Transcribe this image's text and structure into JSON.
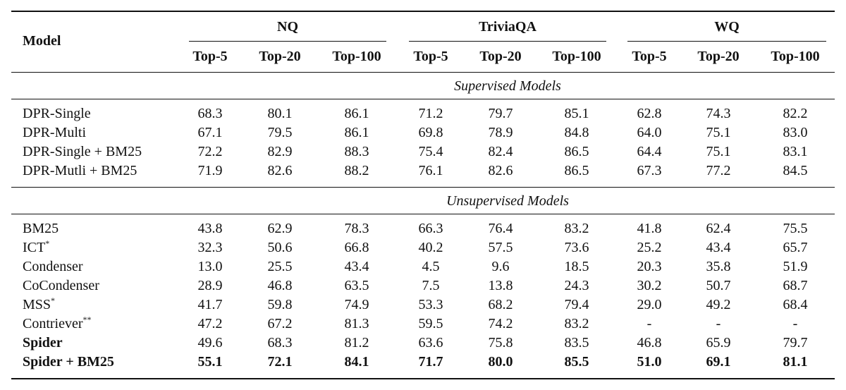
{
  "table": {
    "model_header": "Model",
    "groups": [
      {
        "name": "NQ",
        "columns": [
          "Top-5",
          "Top-20",
          "Top-100"
        ]
      },
      {
        "name": "TriviaQA",
        "columns": [
          "Top-5",
          "Top-20",
          "Top-100"
        ]
      },
      {
        "name": "WQ",
        "columns": [
          "Top-5",
          "Top-20",
          "Top-100"
        ]
      }
    ],
    "sections": [
      {
        "title": "Supervised Models",
        "rows": [
          {
            "model": "DPR-Single",
            "values": [
              "68.3",
              "80.1",
              "86.1",
              "71.2",
              "79.7",
              "85.1",
              "62.8",
              "74.3",
              "82.2"
            ]
          },
          {
            "model": "DPR-Multi",
            "values": [
              "67.1",
              "79.5",
              "86.1",
              "69.8",
              "78.9",
              "84.8",
              "64.0",
              "75.1",
              "83.0"
            ]
          },
          {
            "model": "DPR-Single + BM25",
            "values": [
              "72.2",
              "82.9",
              "88.3",
              "75.4",
              "82.4",
              "86.5",
              "64.4",
              "75.1",
              "83.1"
            ]
          },
          {
            "model": "DPR-Mutli + BM25",
            "values": [
              "71.9",
              "82.6",
              "88.2",
              "76.1",
              "82.6",
              "86.5",
              "67.3",
              "77.2",
              "84.5"
            ]
          }
        ]
      },
      {
        "title": "Unsupervised Models",
        "rows": [
          {
            "model": "BM25",
            "values": [
              "43.8",
              "62.9",
              "78.3",
              "66.3",
              "76.4",
              "83.2",
              "41.8",
              "62.4",
              "75.5"
            ]
          },
          {
            "model": "ICT",
            "sup": "*",
            "values": [
              "32.3",
              "50.6",
              "66.8",
              "40.2",
              "57.5",
              "73.6",
              "25.2",
              "43.4",
              "65.7"
            ]
          },
          {
            "model": "Condenser",
            "values": [
              "13.0",
              "25.5",
              "43.4",
              "4.5",
              "9.6",
              "18.5",
              "20.3",
              "35.8",
              "51.9"
            ]
          },
          {
            "model": "CoCondenser",
            "values": [
              "28.9",
              "46.8",
              "63.5",
              "7.5",
              "13.8",
              "24.3",
              "30.2",
              "50.7",
              "68.7"
            ]
          },
          {
            "model": "MSS",
            "sup": "*",
            "values": [
              "41.7",
              "59.8",
              "74.9",
              "53.3",
              "68.2",
              "79.4",
              "29.0",
              "49.2",
              "68.4"
            ]
          },
          {
            "model": "Contriever",
            "sup": "**",
            "values": [
              "47.2",
              "67.2",
              "81.3",
              "59.5",
              "74.2",
              "83.2",
              "-",
              "-",
              "-"
            ]
          },
          {
            "model": "Spider",
            "bold_model": true,
            "values": [
              "49.6",
              "68.3",
              "81.2",
              "63.6",
              "75.8",
              "83.5",
              "46.8",
              "65.9",
              "79.7"
            ]
          },
          {
            "model": "Spider + BM25",
            "bold_model": true,
            "bold_values": true,
            "values": [
              "55.1",
              "72.1",
              "84.1",
              "71.7",
              "80.0",
              "85.5",
              "51.0",
              "69.1",
              "81.1"
            ]
          }
        ]
      }
    ]
  }
}
